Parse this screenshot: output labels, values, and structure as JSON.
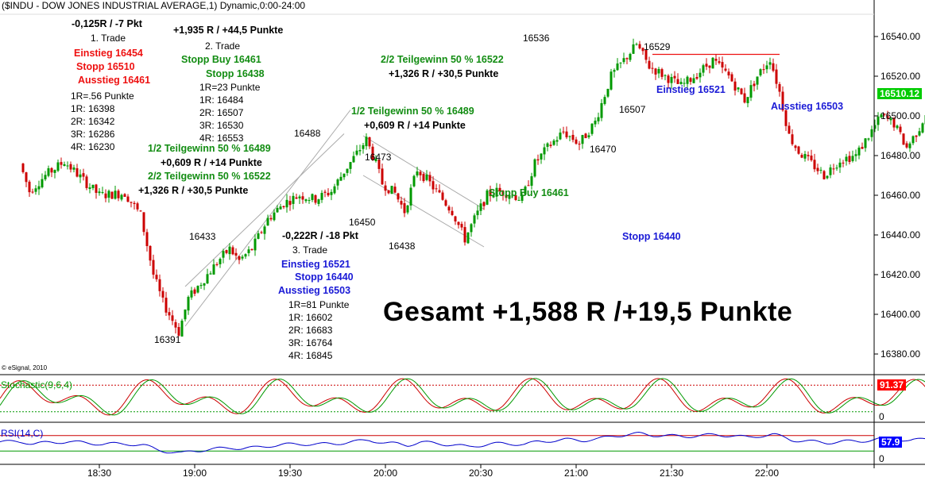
{
  "header": {
    "title": "($INDU - DOW JONES INDUSTRIAL AVERAGE,1) Dynamic,0:00-24:00"
  },
  "watermark": "© eSignal, 2010",
  "headline": "Gesamt +1,588 R /+19,5 Punkte",
  "colors": {
    "up": "#009900",
    "down": "#cc0000",
    "green_text": "#138d13",
    "red_text": "#ee1111",
    "blue_text": "#1a1ad6",
    "stoch_k": "#cc0000",
    "stoch_d": "#009900",
    "rsi": "#0000cc",
    "last_price_bg": "#00cc00",
    "stoch_badge_bg": "#ff0000",
    "rsi_badge_bg": "#0000ff"
  },
  "chart_data": {
    "type": "candlestick",
    "title": "($INDU - DOW JONES INDUSTRIAL AVERAGE,1) Dynamic,0:00-24:00",
    "interval": "1 minute",
    "y_axis": {
      "ticks": [
        "16540.00",
        "16520.00",
        "16500.00",
        "16480.00",
        "16460.00",
        "16440.00",
        "16420.00",
        "16400.00",
        "16380.00"
      ],
      "ylim": [
        16368,
        16550
      ]
    },
    "x_axis": {
      "ticks": [
        "18:30",
        "19:00",
        "19:30",
        "20:00",
        "20:30",
        "21:00",
        "21:30",
        "22:00"
      ]
    },
    "last_price": "16510.12",
    "price_path": [
      {
        "time": "18:06",
        "price": 16476
      },
      {
        "time": "18:09",
        "price": 16462
      },
      {
        "time": "18:14",
        "price": 16470
      },
      {
        "time": "18:20",
        "price": 16477
      },
      {
        "time": "18:27",
        "price": 16466
      },
      {
        "time": "18:31",
        "price": 16460
      },
      {
        "time": "18:39",
        "price": 16461
      },
      {
        "time": "18:44",
        "price": 16450
      },
      {
        "time": "18:48",
        "price": 16420
      },
      {
        "time": "18:51",
        "price": 16406
      },
      {
        "time": "18:53",
        "price": 16400
      },
      {
        "time": "18:56",
        "price": 16391
      },
      {
        "time": "18:59",
        "price": 16408
      },
      {
        "time": "19:04",
        "price": 16418
      },
      {
        "time": "19:09",
        "price": 16428
      },
      {
        "time": "19:12",
        "price": 16433
      },
      {
        "time": "19:15",
        "price": 16427
      },
      {
        "time": "19:19",
        "price": 16433
      },
      {
        "time": "19:24",
        "price": 16448
      },
      {
        "time": "19:29",
        "price": 16456
      },
      {
        "time": "19:34",
        "price": 16460
      },
      {
        "time": "19:39",
        "price": 16458
      },
      {
        "time": "19:44",
        "price": 16462
      },
      {
        "time": "19:48",
        "price": 16472
      },
      {
        "time": "19:52",
        "price": 16481
      },
      {
        "time": "19:55",
        "price": 16488
      },
      {
        "time": "19:58",
        "price": 16476
      },
      {
        "time": "20:00",
        "price": 16466
      },
      {
        "time": "20:04",
        "price": 16461
      },
      {
        "time": "20:07",
        "price": 16452
      },
      {
        "time": "20:11",
        "price": 16473
      },
      {
        "time": "20:14",
        "price": 16468
      },
      {
        "time": "20:18",
        "price": 16460
      },
      {
        "time": "20:22",
        "price": 16452
      },
      {
        "time": "20:26",
        "price": 16438
      },
      {
        "time": "20:29",
        "price": 16448
      },
      {
        "time": "20:33",
        "price": 16460
      },
      {
        "time": "20:36",
        "price": 16462
      },
      {
        "time": "20:40",
        "price": 16461
      },
      {
        "time": "20:44",
        "price": 16458
      },
      {
        "time": "20:48",
        "price": 16476
      },
      {
        "time": "20:52",
        "price": 16484
      },
      {
        "time": "20:57",
        "price": 16492
      },
      {
        "time": "21:02",
        "price": 16486
      },
      {
        "time": "21:07",
        "price": 16497
      },
      {
        "time": "21:12",
        "price": 16520
      },
      {
        "time": "21:16",
        "price": 16528
      },
      {
        "time": "21:20",
        "price": 16536
      },
      {
        "time": "21:24",
        "price": 16525
      },
      {
        "time": "21:29",
        "price": 16520
      },
      {
        "time": "21:34",
        "price": 16515
      },
      {
        "time": "21:39",
        "price": 16521
      },
      {
        "time": "21:44",
        "price": 16528
      },
      {
        "time": "21:49",
        "price": 16520
      },
      {
        "time": "21:54",
        "price": 16508
      },
      {
        "time": "21:58",
        "price": 16520
      },
      {
        "time": "22:02",
        "price": 16529
      },
      {
        "time": "22:05",
        "price": 16512
      },
      {
        "time": "22:08",
        "price": 16490
      },
      {
        "time": "22:11",
        "price": 16482
      },
      {
        "time": "22:15",
        "price": 16476
      },
      {
        "time": "22:19",
        "price": 16470
      },
      {
        "time": "22:24",
        "price": 16478
      },
      {
        "time": "22:29",
        "price": 16480
      },
      {
        "time": "22:33",
        "price": 16490
      },
      {
        "time": "22:37",
        "price": 16500
      },
      {
        "time": "22:41",
        "price": 16496
      },
      {
        "time": "22:45",
        "price": 16484
      },
      {
        "time": "22:49",
        "price": 16494
      },
      {
        "time": "22:53",
        "price": 16509
      },
      {
        "time": "22:55",
        "price": 16512
      },
      {
        "time": "22:57",
        "price": 16510
      }
    ],
    "horizontal_line": {
      "price": 16531,
      "from": "21:24",
      "to": "22:04",
      "color": "#ee1111"
    },
    "channel_lines": [
      {
        "points": [
          [
            "18:57",
            16394
          ],
          [
            "19:49",
            16503
          ]
        ]
      },
      {
        "points": [
          [
            "18:57",
            16414
          ],
          [
            "19:47",
            16491
          ]
        ]
      },
      {
        "points": [
          [
            "19:53",
            16490
          ],
          [
            "20:31",
            16453
          ]
        ]
      },
      {
        "points": [
          [
            "19:53",
            16470
          ],
          [
            "20:31",
            16434
          ]
        ]
      }
    ],
    "price_labels": [
      "16536",
      "16529",
      "16488",
      "16473",
      "16450",
      "16438",
      "16433",
      "16391",
      "16507",
      "16470"
    ],
    "annotations": {
      "trade1": [
        "-0,125R / -7 Pkt",
        "1. Trade",
        "Einstieg 16454",
        "Stopp 16510",
        "Ausstieg 16461",
        "1R=.56 Punkte",
        "1R: 16398",
        "2R: 16342",
        "3R: 16286",
        "4R: 16230"
      ],
      "trade2": [
        "+1,935 R / +44,5 Punkte",
        "2. Trade",
        "Stopp Buy 16461",
        "Stopp 16438",
        "1R=23 Punkte",
        "1R: 16484",
        "2R: 16507",
        "3R: 16530",
        "4R: 16553"
      ],
      "trade2_exits": [
        "1/2 Teilgewinn 50 % 16489",
        "+0,609 R / +14 Punkte",
        "2/2 Teilgewinn 50 % 16522",
        "+1,326 R / +30,5 Punkte"
      ],
      "trade3": [
        "-0,222R / -18 Pkt",
        "3. Trade",
        "Einstieg 16521",
        "Stopp 16440",
        "Ausstieg 16503",
        "1R=81 Punkte",
        "1R: 16602",
        "2R: 16683",
        "3R: 16764",
        "4R: 16845"
      ],
      "right_side": [
        "1/2 Teilgewinn 50 % 16489",
        "+0,609 R / +14 Punkte",
        "2/2 Teilgewinn 50 % 16522",
        "+1,326 R / +30,5 Punkte",
        "Stopp Buy 16461",
        "Einstieg 16521",
        "Ausstieg 16503",
        "Stopp 16440"
      ]
    },
    "indicators": [
      {
        "name": "Stochastic(9,6,4)",
        "last": "91.37",
        "bottom_label": "0",
        "levels": [
          80,
          20
        ]
      },
      {
        "name": "RSI(14,C)",
        "last": "57.9",
        "bottom_label": "0",
        "levels": [
          70,
          30
        ]
      }
    ]
  },
  "labels": {
    "t1_result": "-0,125R / -7 Pkt",
    "t1_name": "1. Trade",
    "t1_entry": "Einstieg 16454",
    "t1_stop": "Stopp 16510",
    "t1_exit": "Ausstieg 16461",
    "t1_r": "1R=.56 Punkte",
    "t1_1r": "1R: 16398",
    "t1_2r": "2R: 16342",
    "t1_3r": "3R: 16286",
    "t1_4r": "4R: 16230",
    "t2_result": "+1,935 R / +44,5 Punkte",
    "t2_name": "2. Trade",
    "t2_stopbuy": "Stopp Buy 16461",
    "t2_stop": "Stopp 16438",
    "t2_r": "1R=23 Punkte",
    "t2_1r": "1R: 16484",
    "t2_2r": "2R: 16507",
    "t2_3r": "3R: 16530",
    "t2_4r": "4R: 16553",
    "t2_half1": "1/2 Teilgewinn 50 % 16489",
    "t2_half1_res": "+0,609 R / +14 Punkte",
    "t2_half2": "2/2 Teilgewinn 50 % 16522",
    "t2_half2_res": "+1,326 R / +30,5 Punkte",
    "t3_result": "-0,222R / -18 Pkt",
    "t3_name": "3. Trade",
    "t3_entry": "Einstieg 16521",
    "t3_stop": "Stopp 16440",
    "t3_exit": "Ausstieg 16503",
    "t3_r": "1R=81 Punkte",
    "t3_1r": "1R: 16602",
    "t3_2r": "2R: 16683",
    "t3_3r": "3R: 16764",
    "t3_4r": "4R: 16845",
    "r_half2": "2/2 Teilgewinn 50 % 16522",
    "r_half2_res": "+1,326 R / +30,5 Punkte",
    "r_half1": "1/2 Teilgewinn 50 % 16489",
    "r_half1_res": "+0,609 R / +14 Punkte",
    "r_stopbuy": "Stopp Buy 16461",
    "r_entry": "Einstieg 16521",
    "r_exit": "Ausstieg 16503",
    "r_stop": "Stopp 16440",
    "p16536": "16536",
    "p16529": "16529",
    "p16488": "16488",
    "p16473": "16473",
    "p16450": "16450",
    "p16438": "16438",
    "p16433": "16433",
    "p16391": "16391",
    "p16507": "16507",
    "p16470": "16470"
  }
}
